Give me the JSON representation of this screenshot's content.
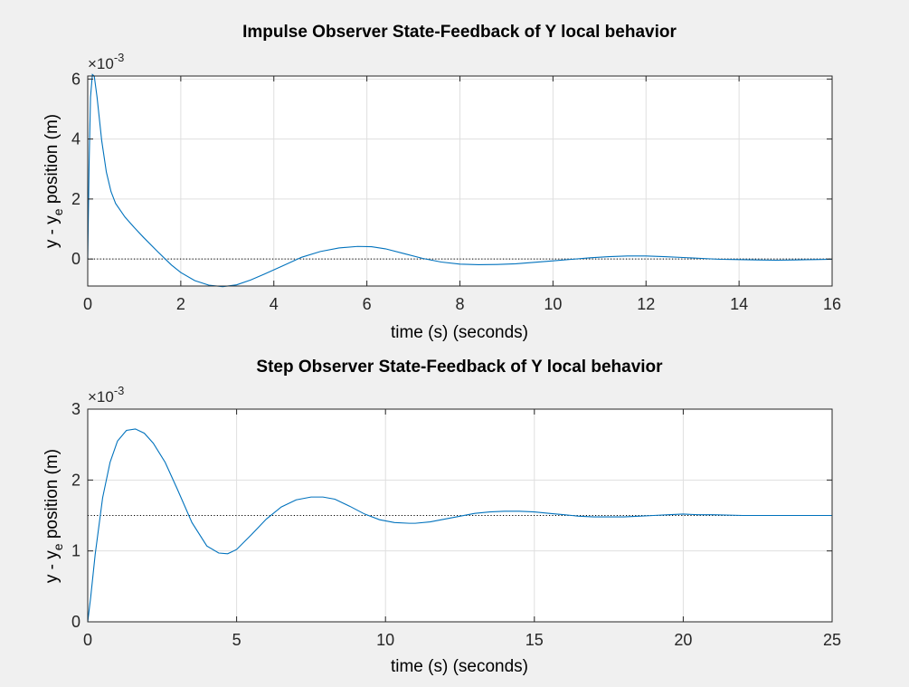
{
  "chart_data": [
    {
      "type": "line",
      "title": "Impulse Observer State-Feedback of Y local behavior",
      "xlabel": "time (s) (seconds)",
      "ylabel": {
        "prefix": "y - y",
        "subscript": "e",
        "suffix": " position (m)"
      },
      "y_multiplier": {
        "base": "×10",
        "exponent": "-3"
      },
      "xlim": [
        0,
        16
      ],
      "ylim": [
        -0.9,
        6.1
      ],
      "xticks": [
        0,
        2,
        4,
        6,
        8,
        10,
        12,
        14,
        16
      ],
      "yticks": [
        0,
        2,
        4,
        6
      ],
      "tick_labels_x": [
        "0",
        "2",
        "4",
        "6",
        "8",
        "10",
        "12",
        "14",
        "16"
      ],
      "tick_labels_y": [
        "0",
        "2",
        "4",
        "6"
      ],
      "grid": true,
      "reference_line": 0,
      "series": [
        {
          "color": "#0072bd",
          "x": [
            0,
            0.03,
            0.06,
            0.1,
            0.14,
            0.2,
            0.3,
            0.4,
            0.5,
            0.6,
            0.8,
            1.0,
            1.2,
            1.5,
            1.8,
            2.0,
            2.3,
            2.6,
            2.9,
            3.2,
            3.5,
            3.8,
            4.2,
            4.6,
            5.0,
            5.4,
            5.8,
            6.1,
            6.4,
            6.8,
            7.2,
            7.6,
            8.0,
            8.4,
            8.8,
            9.2,
            9.6,
            10.0,
            10.4,
            10.8,
            11.2,
            11.6,
            12.0,
            12.4,
            12.8,
            13.2,
            13.6,
            14.0,
            14.4,
            14.8,
            15.2,
            15.6,
            16.0
          ],
          "values": [
            0,
            3.2,
            5.4,
            6.15,
            6.1,
            5.4,
            3.95,
            2.9,
            2.25,
            1.85,
            1.4,
            1.05,
            0.72,
            0.25,
            -0.2,
            -0.45,
            -0.72,
            -0.87,
            -0.92,
            -0.86,
            -0.7,
            -0.5,
            -0.22,
            0.06,
            0.25,
            0.37,
            0.42,
            0.41,
            0.34,
            0.18,
            0.02,
            -0.1,
            -0.17,
            -0.19,
            -0.18,
            -0.16,
            -0.11,
            -0.06,
            -0.01,
            0.04,
            0.08,
            0.1,
            0.1,
            0.08,
            0.05,
            0.02,
            -0.01,
            -0.02,
            -0.03,
            -0.04,
            -0.03,
            -0.02,
            -0.01
          ]
        }
      ]
    },
    {
      "type": "line",
      "title": "Step Observer State-Feedback of Y local behavior",
      "xlabel": "time (s) (seconds)",
      "ylabel": {
        "prefix": "y - y",
        "subscript": "e",
        "suffix": " position (m)"
      },
      "y_multiplier": {
        "base": "×10",
        "exponent": "-3"
      },
      "xlim": [
        0,
        25
      ],
      "ylim": [
        0,
        3
      ],
      "xticks": [
        0,
        5,
        10,
        15,
        20,
        25
      ],
      "yticks": [
        0,
        1,
        2,
        3
      ],
      "tick_labels_x": [
        "0",
        "5",
        "10",
        "15",
        "20",
        "25"
      ],
      "tick_labels_y": [
        "0",
        "1",
        "2",
        "3"
      ],
      "grid": true,
      "reference_line": 1.5,
      "series": [
        {
          "color": "#0072bd",
          "x": [
            0,
            0.1,
            0.25,
            0.5,
            0.75,
            1.0,
            1.3,
            1.6,
            1.9,
            2.2,
            2.6,
            3.0,
            3.5,
            4.0,
            4.4,
            4.7,
            5.0,
            5.5,
            6.0,
            6.5,
            7.0,
            7.5,
            7.9,
            8.3,
            8.8,
            9.3,
            9.8,
            10.3,
            10.8,
            11.0,
            11.5,
            12.0,
            12.5,
            13.0,
            13.5,
            14.0,
            14.5,
            15.0,
            15.5,
            16.0,
            16.5,
            17.0,
            17.5,
            18.0,
            18.5,
            19.0,
            19.5,
            20.0,
            20.5,
            21.0,
            22.0,
            23.0,
            24.0,
            25.0
          ],
          "values": [
            0,
            0.35,
            0.95,
            1.75,
            2.25,
            2.55,
            2.7,
            2.72,
            2.66,
            2.52,
            2.25,
            1.88,
            1.4,
            1.07,
            0.97,
            0.96,
            1.02,
            1.23,
            1.45,
            1.62,
            1.72,
            1.76,
            1.76,
            1.73,
            1.63,
            1.52,
            1.44,
            1.4,
            1.39,
            1.39,
            1.41,
            1.45,
            1.49,
            1.53,
            1.55,
            1.56,
            1.56,
            1.55,
            1.53,
            1.51,
            1.49,
            1.48,
            1.48,
            1.48,
            1.49,
            1.5,
            1.51,
            1.52,
            1.51,
            1.51,
            1.5,
            1.5,
            1.5,
            1.5
          ]
        }
      ]
    }
  ]
}
